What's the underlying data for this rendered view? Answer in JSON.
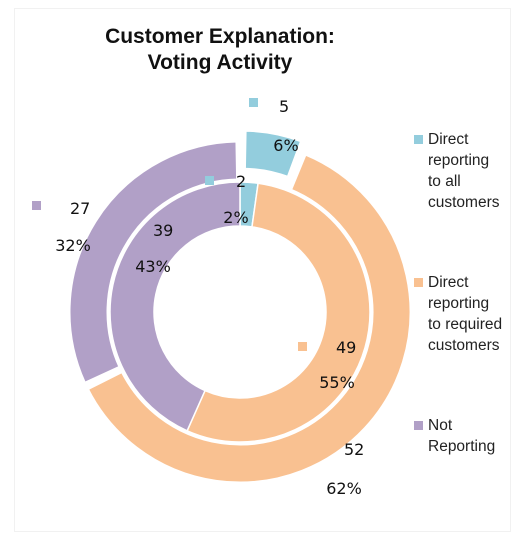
{
  "chart_data": {
    "type": "doughnut",
    "title_line1": "Customer Explanation:",
    "title_line2": "Voting Activity",
    "categories": [
      "Direct\nreporting\nto all\ncustomers",
      "Direct\nreporting\nto required\ncustomers",
      "Not\nReporting"
    ],
    "colors": [
      "#93cddd",
      "#f9c191",
      "#b1a0c7"
    ],
    "series": [
      {
        "ring": "outer",
        "values": [
          5,
          52,
          27
        ],
        "percent_labels": [
          "6%",
          "62%",
          "32%"
        ]
      },
      {
        "ring": "inner",
        "values": [
          2,
          49,
          39
        ],
        "percent_labels": [
          "2%",
          "55%",
          "43%"
        ]
      }
    ],
    "exploded_slice": "outer ring, first category",
    "legend_position": "right"
  }
}
